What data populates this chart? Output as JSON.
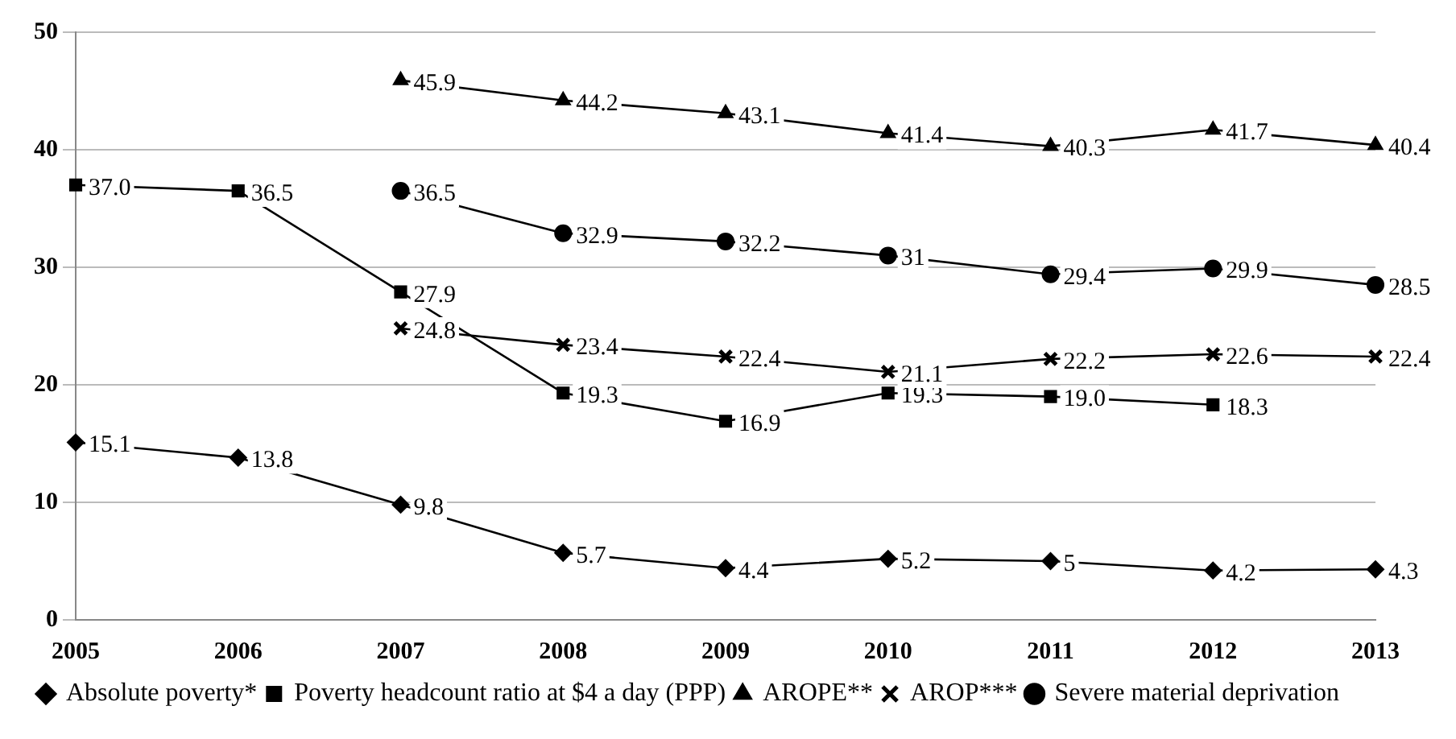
{
  "chart_data": {
    "type": "line",
    "categories": [
      "2005",
      "2006",
      "2007",
      "2008",
      "2009",
      "2010",
      "2011",
      "2012",
      "2013"
    ],
    "series": [
      {
        "name": "Absolute poverty*",
        "color": "#000000",
        "marker": "diamond",
        "values": [
          15.1,
          13.8,
          9.8,
          5.7,
          4.4,
          5.2,
          5,
          4.2,
          4.3
        ],
        "value_labels": [
          "15.1",
          "13.8",
          "9.8",
          "5.7",
          "4.4",
          "5.2",
          "5",
          "4.2",
          "4.3"
        ]
      },
      {
        "name": "Poverty headcount ratio at $4 a day (PPP)",
        "color": "#000000",
        "marker": "square",
        "values": [
          37.0,
          36.5,
          27.9,
          19.3,
          16.9,
          19.3,
          19.0,
          18.3,
          null
        ],
        "value_labels": [
          "37.0",
          "36.5",
          "27.9",
          "19.3",
          "16.9",
          "19.3",
          "19.0",
          "18.3",
          null
        ]
      },
      {
        "name": "AROPE**",
        "color": "#000000",
        "marker": "triangle",
        "values": [
          null,
          null,
          45.9,
          44.2,
          43.1,
          41.4,
          40.3,
          41.7,
          40.4
        ],
        "value_labels": [
          null,
          null,
          "45.9",
          "44.2",
          "43.1",
          "41.4",
          "40.3",
          "41.7",
          "40.4"
        ]
      },
      {
        "name": "AROP***",
        "color": "#000000",
        "marker": "cross",
        "values": [
          null,
          null,
          24.8,
          23.4,
          22.4,
          21.1,
          22.2,
          22.6,
          22.4
        ],
        "value_labels": [
          null,
          null,
          "24.8",
          "23.4",
          "22.4",
          "21.1",
          "22.2",
          "22.6",
          "22.4"
        ]
      },
      {
        "name": "Severe material deprivation",
        "color": "#000000",
        "marker": "circle",
        "values": [
          null,
          null,
          36.5,
          32.9,
          32.2,
          31,
          29.4,
          29.9,
          28.5
        ],
        "value_labels": [
          null,
          null,
          "36.5",
          "32.9",
          "32.2",
          "31",
          "29.4",
          "29.9",
          "28.5"
        ]
      }
    ],
    "ylim": [
      0,
      50
    ],
    "yticks": [
      0,
      10,
      20,
      30,
      40,
      50
    ],
    "grid": "y",
    "legend": "bottom",
    "line_style": "solid"
  }
}
